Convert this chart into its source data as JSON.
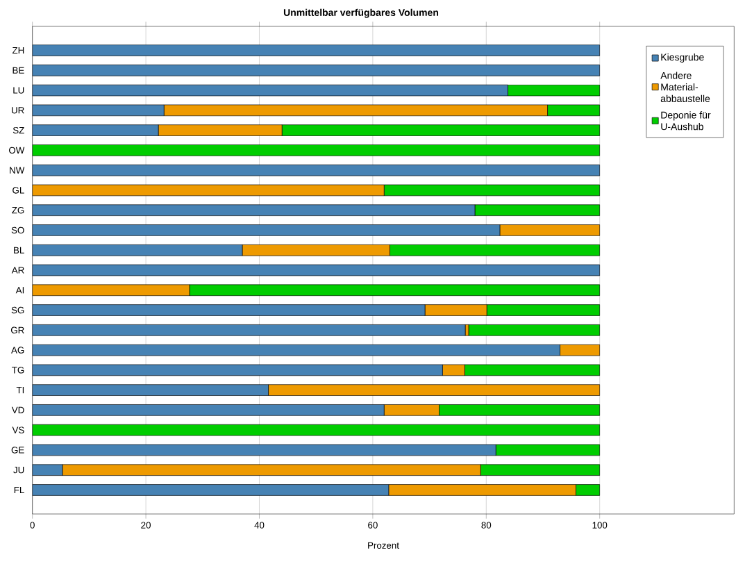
{
  "chart_data": {
    "type": "bar",
    "orientation": "horizontal",
    "stacked": true,
    "title": "Unmittelbar verfügbares Volumen",
    "xlabel": "Prozent",
    "categories": [
      "ZH",
      "BE",
      "LU",
      "UR",
      "SZ",
      "OW",
      "NW",
      "GL",
      "ZG",
      "SO",
      "BL",
      "AR",
      "AI",
      "SG",
      "GR",
      "AG",
      "TG",
      "TI",
      "VD",
      "VS",
      "GE",
      "JU",
      "FL"
    ],
    "series": [
      {
        "name": "Kiesgrube",
        "color": "#4682b4",
        "values": [
          100,
          100,
          83.8,
          23.2,
          22.2,
          0,
          100,
          0,
          78.0,
          82.4,
          37.0,
          100,
          0,
          69.2,
          76.3,
          93.0,
          72.3,
          41.6,
          62.0,
          0,
          81.7,
          5.3,
          62.8
        ]
      },
      {
        "name": "Andere Material-abbaustelle",
        "color": "#ee9a00",
        "values": [
          0,
          0,
          0,
          67.6,
          21.8,
          0,
          0,
          62.0,
          0,
          17.6,
          26.0,
          0,
          27.7,
          10.9,
          0.6,
          7.0,
          3.9,
          58.4,
          9.7,
          0,
          0,
          73.7,
          33.0
        ]
      },
      {
        "name": "Deponie für U-Aushub",
        "color": "#00cd00",
        "values": [
          0,
          0,
          16.2,
          9.2,
          56.0,
          100,
          0,
          38.0,
          22.0,
          0,
          37.0,
          0,
          72.3,
          19.9,
          23.1,
          0,
          23.8,
          0,
          28.3,
          100,
          18.3,
          21.0,
          4.2
        ]
      }
    ],
    "xlim": [
      0,
      123.7
    ],
    "xticks": [
      0,
      20,
      40,
      60,
      80,
      100
    ],
    "grid": "x",
    "legend": "top right"
  }
}
